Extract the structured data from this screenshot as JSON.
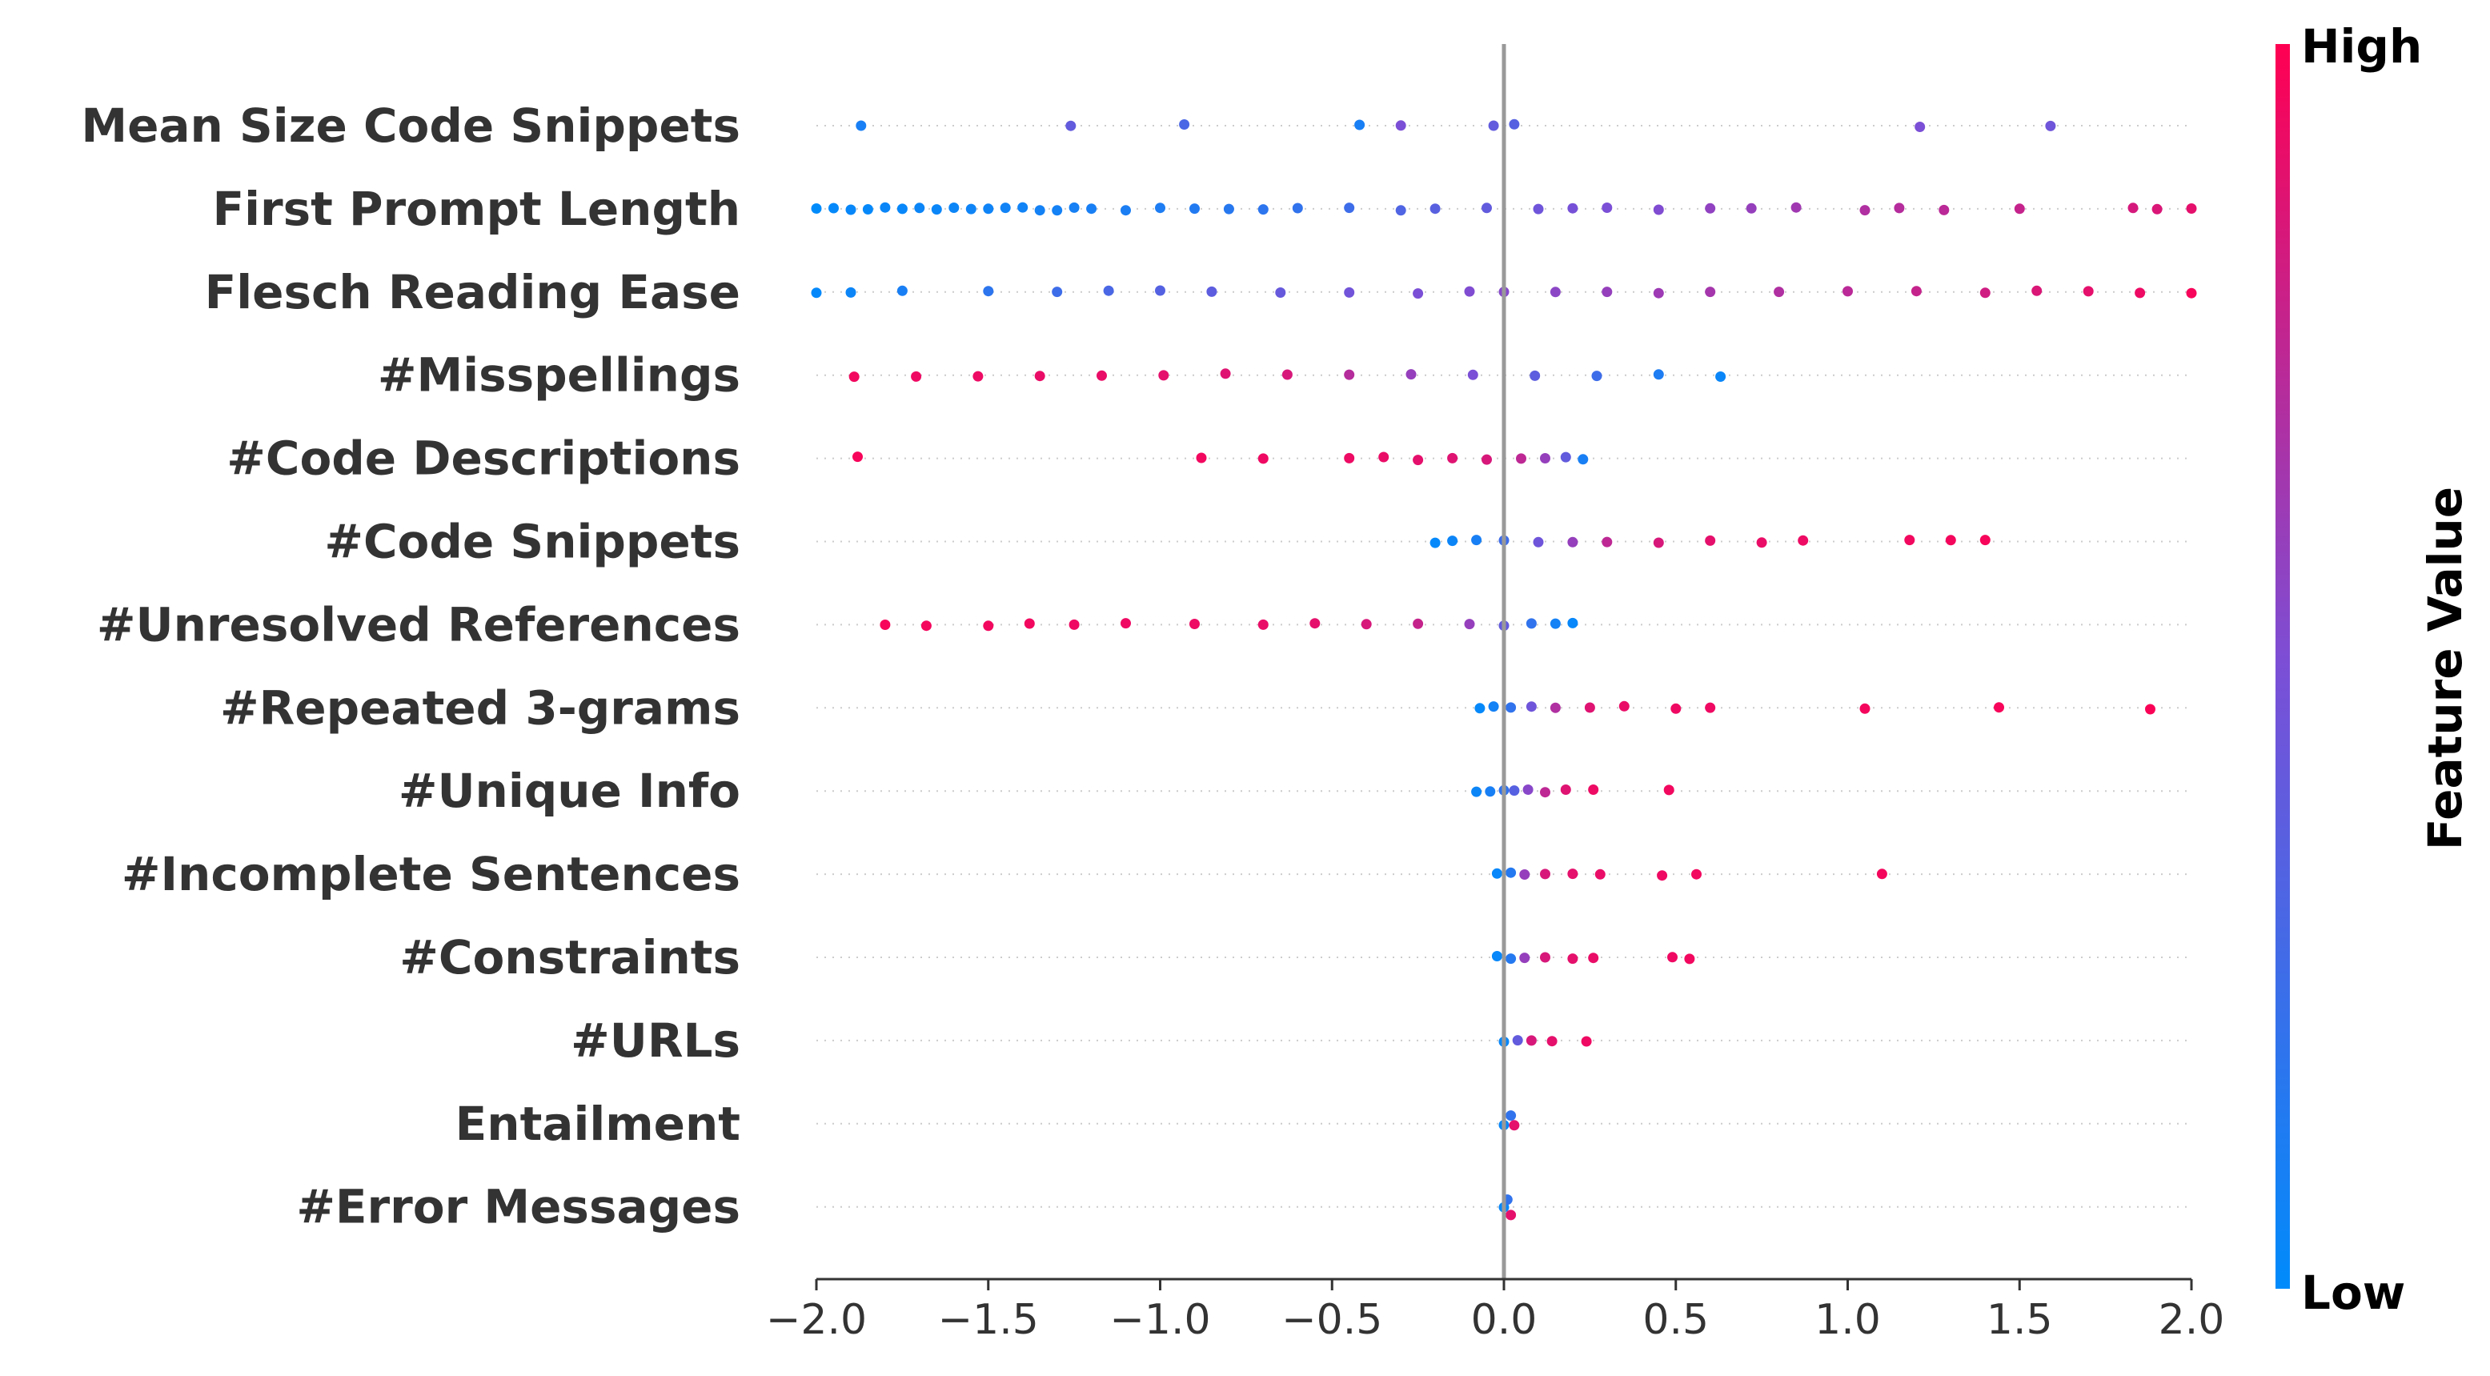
{
  "chart_data": {
    "type": "scatter",
    "subtype": "shap-beeswarm",
    "xlim": [
      -2.0,
      2.0
    ],
    "x_ticks": [
      -2.0,
      -1.5,
      -1.0,
      -0.5,
      0.0,
      0.5,
      1.0,
      1.5,
      2.0
    ],
    "x_tick_labels": [
      "−2.0",
      "−1.5",
      "−1.0",
      "−0.5",
      "0.0",
      "0.5",
      "1.0",
      "1.5",
      "2.0"
    ],
    "zero_line": 0.0,
    "colorbar": {
      "high_label": "High",
      "low_label": "Low",
      "title": "Feature Value",
      "high_color": "#ff0052",
      "low_color": "#008bfb",
      "mid_color": "#7b4fd6"
    },
    "features": [
      {
        "name": "Mean Size Code Snippets",
        "points": [
          [
            -1.87,
            0.1
          ],
          [
            -1.26,
            0.4
          ],
          [
            -0.93,
            0.3
          ],
          [
            -0.42,
            0.1
          ],
          [
            -0.3,
            0.5
          ],
          [
            -0.03,
            0.4
          ],
          [
            0.03,
            0.35
          ],
          [
            1.21,
            0.5
          ],
          [
            1.59,
            0.45
          ]
        ]
      },
      {
        "name": "First Prompt Length",
        "points": [
          [
            -2.0,
            0.0
          ],
          [
            -1.95,
            0.02
          ],
          [
            -1.9,
            0.03
          ],
          [
            -1.85,
            0.02
          ],
          [
            -1.8,
            0.04
          ],
          [
            -1.75,
            0.03
          ],
          [
            -1.7,
            0.05
          ],
          [
            -1.65,
            0.04
          ],
          [
            -1.6,
            0.05
          ],
          [
            -1.55,
            0.06
          ],
          [
            -1.5,
            0.06
          ],
          [
            -1.45,
            0.07
          ],
          [
            -1.4,
            0.07
          ],
          [
            -1.35,
            0.08
          ],
          [
            -1.3,
            0.08
          ],
          [
            -1.25,
            0.09
          ],
          [
            -1.2,
            0.1
          ],
          [
            -1.1,
            0.11
          ],
          [
            -1.0,
            0.12
          ],
          [
            -0.9,
            0.14
          ],
          [
            -0.8,
            0.16
          ],
          [
            -0.7,
            0.18
          ],
          [
            -0.6,
            0.2
          ],
          [
            -0.45,
            0.25
          ],
          [
            -0.3,
            0.32
          ],
          [
            -0.2,
            0.36
          ],
          [
            -0.05,
            0.4
          ],
          [
            0.1,
            0.45
          ],
          [
            0.2,
            0.48
          ],
          [
            0.3,
            0.5
          ],
          [
            0.45,
            0.52
          ],
          [
            0.6,
            0.58
          ],
          [
            0.72,
            0.6
          ],
          [
            0.85,
            0.64
          ],
          [
            1.05,
            0.7
          ],
          [
            1.15,
            0.72
          ],
          [
            1.28,
            0.74
          ],
          [
            1.5,
            0.78
          ],
          [
            1.83,
            0.84
          ],
          [
            1.9,
            0.86
          ],
          [
            2.0,
            0.9
          ]
        ]
      },
      {
        "name": "Flesch Reading Ease",
        "points": [
          [
            -2.0,
            0.02
          ],
          [
            -1.9,
            0.05
          ],
          [
            -1.75,
            0.1
          ],
          [
            -1.5,
            0.18
          ],
          [
            -1.3,
            0.25
          ],
          [
            -1.15,
            0.3
          ],
          [
            -1.0,
            0.34
          ],
          [
            -0.85,
            0.38
          ],
          [
            -0.65,
            0.42
          ],
          [
            -0.45,
            0.46
          ],
          [
            -0.25,
            0.5
          ],
          [
            -0.1,
            0.52
          ],
          [
            0.0,
            0.54
          ],
          [
            0.15,
            0.56
          ],
          [
            0.3,
            0.6
          ],
          [
            0.45,
            0.63
          ],
          [
            0.6,
            0.66
          ],
          [
            0.8,
            0.7
          ],
          [
            1.0,
            0.74
          ],
          [
            1.2,
            0.78
          ],
          [
            1.4,
            0.82
          ],
          [
            1.55,
            0.86
          ],
          [
            1.7,
            0.9
          ],
          [
            1.85,
            0.93
          ],
          [
            2.0,
            0.97
          ]
        ]
      },
      {
        "name": "#Misspellings",
        "points": [
          [
            -1.89,
            0.95
          ],
          [
            -1.71,
            0.94
          ],
          [
            -1.53,
            0.93
          ],
          [
            -1.35,
            0.92
          ],
          [
            -1.17,
            0.92
          ],
          [
            -0.99,
            0.9
          ],
          [
            -0.81,
            0.88
          ],
          [
            -0.63,
            0.85
          ],
          [
            -0.45,
            0.72
          ],
          [
            -0.27,
            0.6
          ],
          [
            -0.09,
            0.5
          ],
          [
            0.09,
            0.38
          ],
          [
            0.27,
            0.25
          ],
          [
            0.45,
            0.12
          ],
          [
            0.63,
            0.04
          ]
        ]
      },
      {
        "name": "#Code Descriptions",
        "points": [
          [
            -1.88,
            0.97
          ],
          [
            -0.88,
            0.95
          ],
          [
            -0.7,
            0.94
          ],
          [
            -0.45,
            0.93
          ],
          [
            -0.35,
            0.92
          ],
          [
            -0.25,
            0.9
          ],
          [
            -0.15,
            0.88
          ],
          [
            -0.05,
            0.85
          ],
          [
            0.05,
            0.75
          ],
          [
            0.12,
            0.6
          ],
          [
            0.18,
            0.4
          ],
          [
            0.23,
            0.1
          ]
        ]
      },
      {
        "name": "#Code Snippets",
        "points": [
          [
            -0.2,
            0.02
          ],
          [
            -0.15,
            0.05
          ],
          [
            -0.08,
            0.1
          ],
          [
            0.0,
            0.25
          ],
          [
            0.1,
            0.45
          ],
          [
            0.2,
            0.6
          ],
          [
            0.3,
            0.75
          ],
          [
            0.45,
            0.85
          ],
          [
            0.6,
            0.9
          ],
          [
            0.75,
            0.92
          ],
          [
            0.87,
            0.93
          ],
          [
            1.18,
            0.95
          ],
          [
            1.3,
            0.96
          ],
          [
            1.4,
            0.97
          ]
        ]
      },
      {
        "name": "#Unresolved References",
        "points": [
          [
            -1.8,
            0.97
          ],
          [
            -1.68,
            0.96
          ],
          [
            -1.5,
            0.95
          ],
          [
            -1.38,
            0.95
          ],
          [
            -1.25,
            0.94
          ],
          [
            -1.1,
            0.94
          ],
          [
            -0.9,
            0.93
          ],
          [
            -0.7,
            0.92
          ],
          [
            -0.55,
            0.9
          ],
          [
            -0.4,
            0.85
          ],
          [
            -0.25,
            0.78
          ],
          [
            -0.1,
            0.6
          ],
          [
            0.0,
            0.4
          ],
          [
            0.08,
            0.2
          ],
          [
            0.15,
            0.08
          ],
          [
            0.2,
            0.03
          ]
        ]
      },
      {
        "name": "#Repeated 3-grams",
        "points": [
          [
            -0.07,
            0.02
          ],
          [
            -0.03,
            0.08
          ],
          [
            0.02,
            0.2
          ],
          [
            0.08,
            0.45
          ],
          [
            0.15,
            0.7
          ],
          [
            0.25,
            0.88
          ],
          [
            0.35,
            0.92
          ],
          [
            0.5,
            0.94
          ],
          [
            0.6,
            0.94
          ],
          [
            1.05,
            0.96
          ],
          [
            1.44,
            0.97
          ],
          [
            1.88,
            0.98
          ]
        ]
      },
      {
        "name": "#Unique Info",
        "points": [
          [
            -0.08,
            0.05
          ],
          [
            -0.04,
            0.1
          ],
          [
            0.0,
            0.2
          ],
          [
            0.03,
            0.35
          ],
          [
            0.07,
            0.55
          ],
          [
            0.12,
            0.75
          ],
          [
            0.18,
            0.88
          ],
          [
            0.26,
            0.93
          ],
          [
            0.48,
            0.95
          ]
        ]
      },
      {
        "name": "#Incomplete Sentences",
        "points": [
          [
            -0.02,
            0.03
          ],
          [
            0.02,
            0.15
          ],
          [
            0.06,
            0.6
          ],
          [
            0.12,
            0.85
          ],
          [
            0.2,
            0.9
          ],
          [
            0.28,
            0.92
          ],
          [
            0.46,
            0.94
          ],
          [
            0.56,
            0.95
          ],
          [
            1.1,
            0.96
          ]
        ]
      },
      {
        "name": "#Constraints",
        "points": [
          [
            -0.02,
            0.03
          ],
          [
            0.02,
            0.15
          ],
          [
            0.06,
            0.6
          ],
          [
            0.12,
            0.85
          ],
          [
            0.2,
            0.9
          ],
          [
            0.26,
            0.92
          ],
          [
            0.49,
            0.94
          ],
          [
            0.54,
            0.95
          ]
        ]
      },
      {
        "name": "#URLs",
        "points": [
          [
            0.0,
            0.03
          ],
          [
            0.04,
            0.4
          ],
          [
            0.08,
            0.85
          ],
          [
            0.14,
            0.9
          ],
          [
            0.24,
            0.94
          ]
        ]
      },
      {
        "name": "Entailment",
        "points": [
          [
            0.0,
            0.03
          ],
          [
            0.02,
            0.2
          ],
          [
            0.03,
            0.9
          ]
        ]
      },
      {
        "name": "#Error Messages",
        "points": [
          [
            0.0,
            0.03
          ],
          [
            0.01,
            0.2
          ],
          [
            0.02,
            0.9
          ]
        ]
      }
    ]
  }
}
